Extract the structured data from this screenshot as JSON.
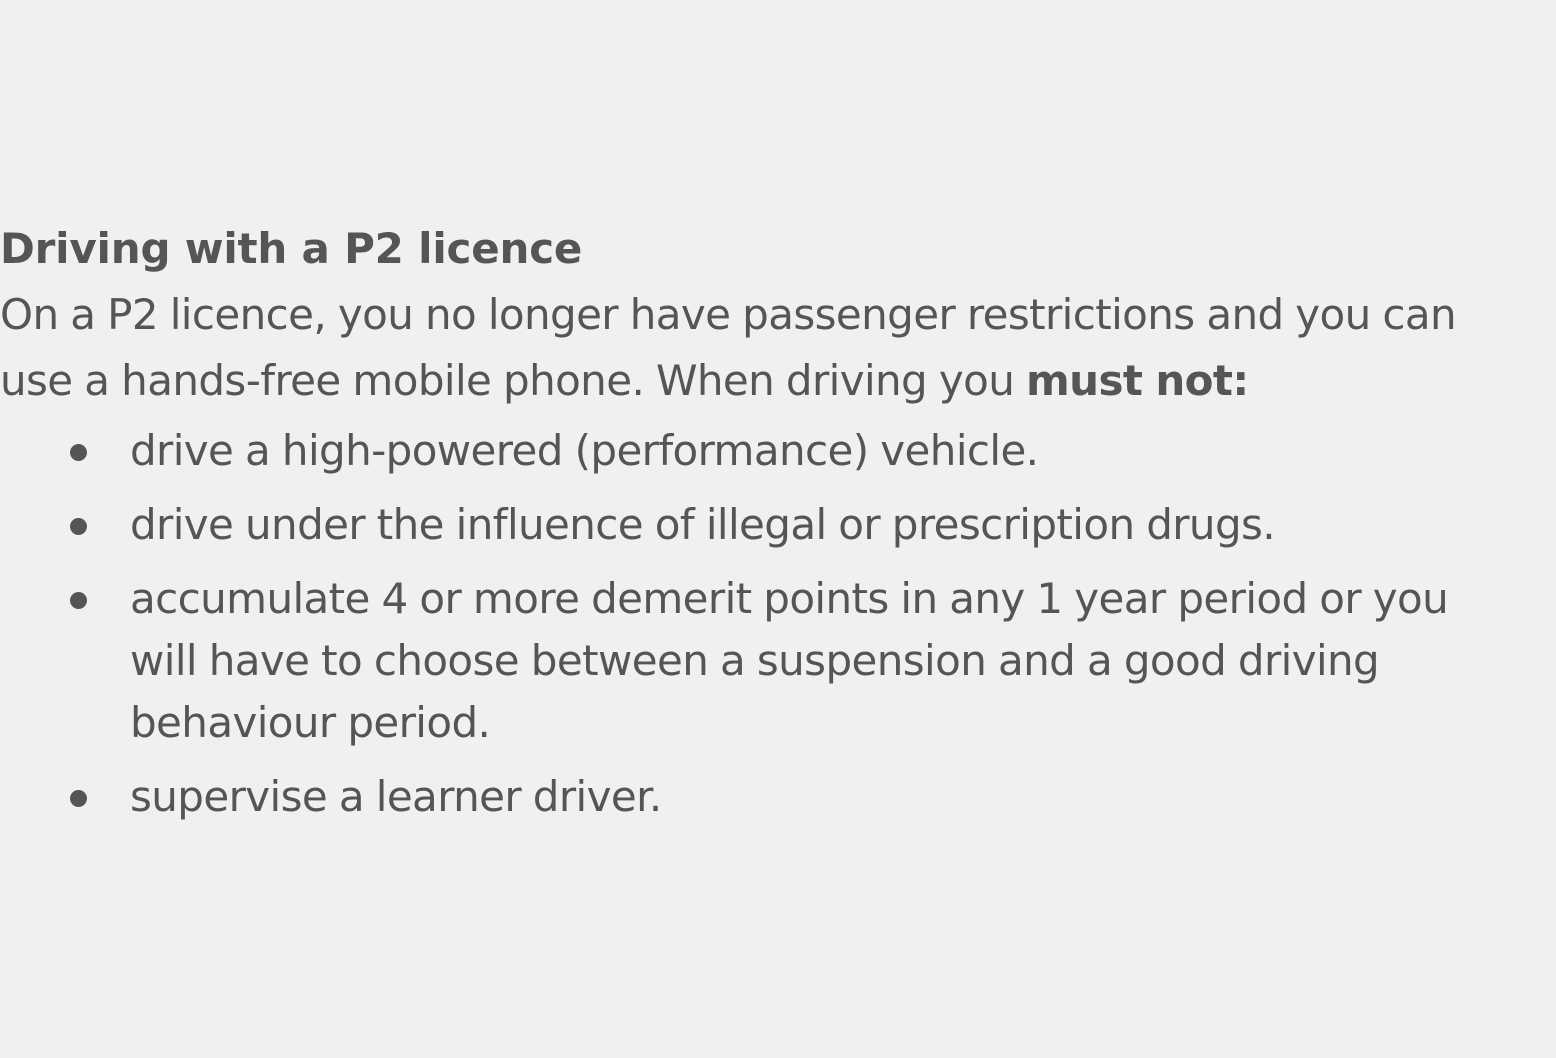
{
  "section": {
    "heading": "Driving with a P2 licence",
    "intro_text": "On a P2 licence, you no longer have passenger restrictions and you can use a hands-free mobile phone. When driving you ",
    "intro_emphasis": "must not:"
  },
  "rules": [
    "drive a high-powered (performance) vehicle.",
    "drive under the influence of illegal or prescription drugs.",
    "accumulate 4 or more demerit points in any 1 year period or you will have to choose between a suspension and a good driving behaviour period.",
    "supervise a learner driver."
  ],
  "colors": {
    "background": "#f0f0f0",
    "text": "#555555"
  }
}
